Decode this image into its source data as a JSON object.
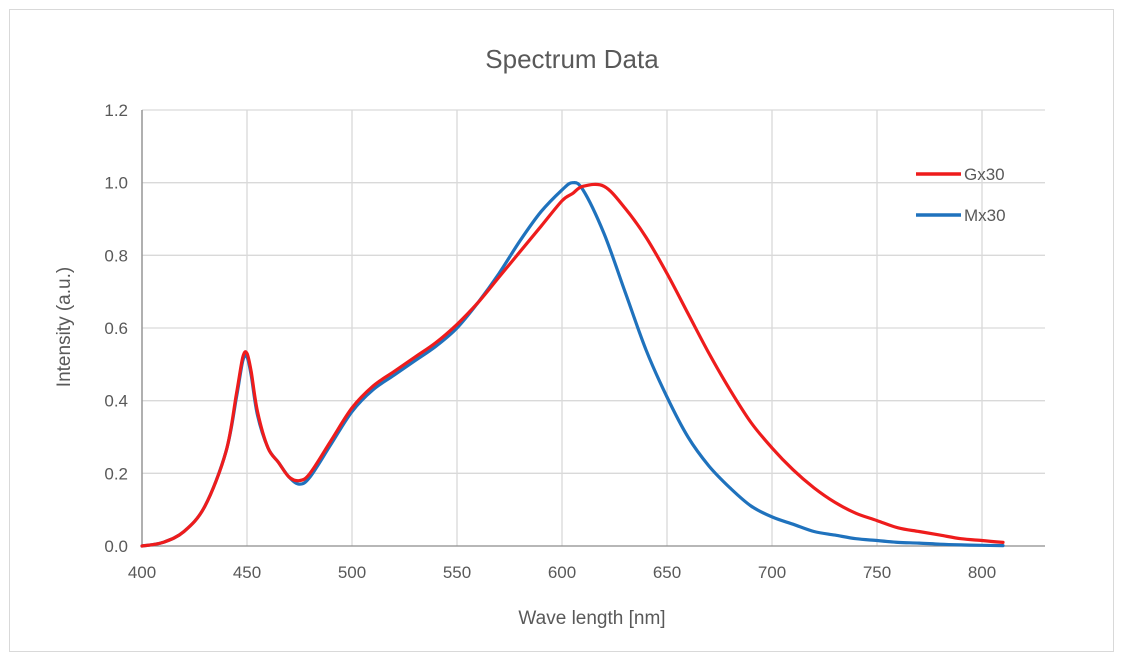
{
  "chart_data": {
    "type": "line",
    "title": "Spectrum Data",
    "xlabel": "Wave length [nm]",
    "ylabel": "Intensity (a.u.)",
    "xlim": [
      400,
      830
    ],
    "ylim": [
      0,
      1.2
    ],
    "x_ticks": [
      400,
      450,
      500,
      550,
      600,
      650,
      700,
      750,
      800
    ],
    "y_ticks": [
      "0.0",
      "0.2",
      "0.4",
      "0.6",
      "0.8",
      "1.0",
      "1.2"
    ],
    "grid": true,
    "legend_position": "top-right",
    "x": [
      400,
      410,
      420,
      430,
      440,
      445,
      448,
      450,
      452,
      455,
      460,
      465,
      470,
      475,
      480,
      490,
      500,
      510,
      520,
      530,
      540,
      550,
      560,
      570,
      580,
      590,
      600,
      605,
      610,
      620,
      630,
      640,
      650,
      660,
      670,
      680,
      690,
      700,
      710,
      720,
      730,
      740,
      750,
      760,
      770,
      780,
      790,
      800,
      810
    ],
    "series": [
      {
        "name": "Gx30",
        "color": "#ee1c1c",
        "values": [
          0.0,
          0.01,
          0.04,
          0.11,
          0.26,
          0.42,
          0.52,
          0.53,
          0.48,
          0.37,
          0.27,
          0.23,
          0.19,
          0.18,
          0.2,
          0.29,
          0.38,
          0.44,
          0.48,
          0.52,
          0.56,
          0.61,
          0.67,
          0.74,
          0.81,
          0.88,
          0.95,
          0.97,
          0.99,
          0.99,
          0.93,
          0.85,
          0.75,
          0.64,
          0.53,
          0.43,
          0.34,
          0.27,
          0.21,
          0.16,
          0.12,
          0.09,
          0.07,
          0.05,
          0.04,
          0.03,
          0.02,
          0.015,
          0.01
        ]
      },
      {
        "name": "Mx30",
        "color": "#1f72bd",
        "values": [
          0.0,
          0.01,
          0.04,
          0.11,
          0.26,
          0.41,
          0.51,
          0.52,
          0.47,
          0.36,
          0.27,
          0.23,
          0.19,
          0.17,
          0.19,
          0.28,
          0.37,
          0.43,
          0.47,
          0.51,
          0.55,
          0.6,
          0.67,
          0.75,
          0.84,
          0.92,
          0.98,
          1.0,
          0.98,
          0.86,
          0.7,
          0.54,
          0.41,
          0.3,
          0.22,
          0.16,
          0.11,
          0.08,
          0.06,
          0.04,
          0.03,
          0.02,
          0.015,
          0.01,
          0.008,
          0.005,
          0.003,
          0.002,
          0.001
        ]
      }
    ]
  }
}
